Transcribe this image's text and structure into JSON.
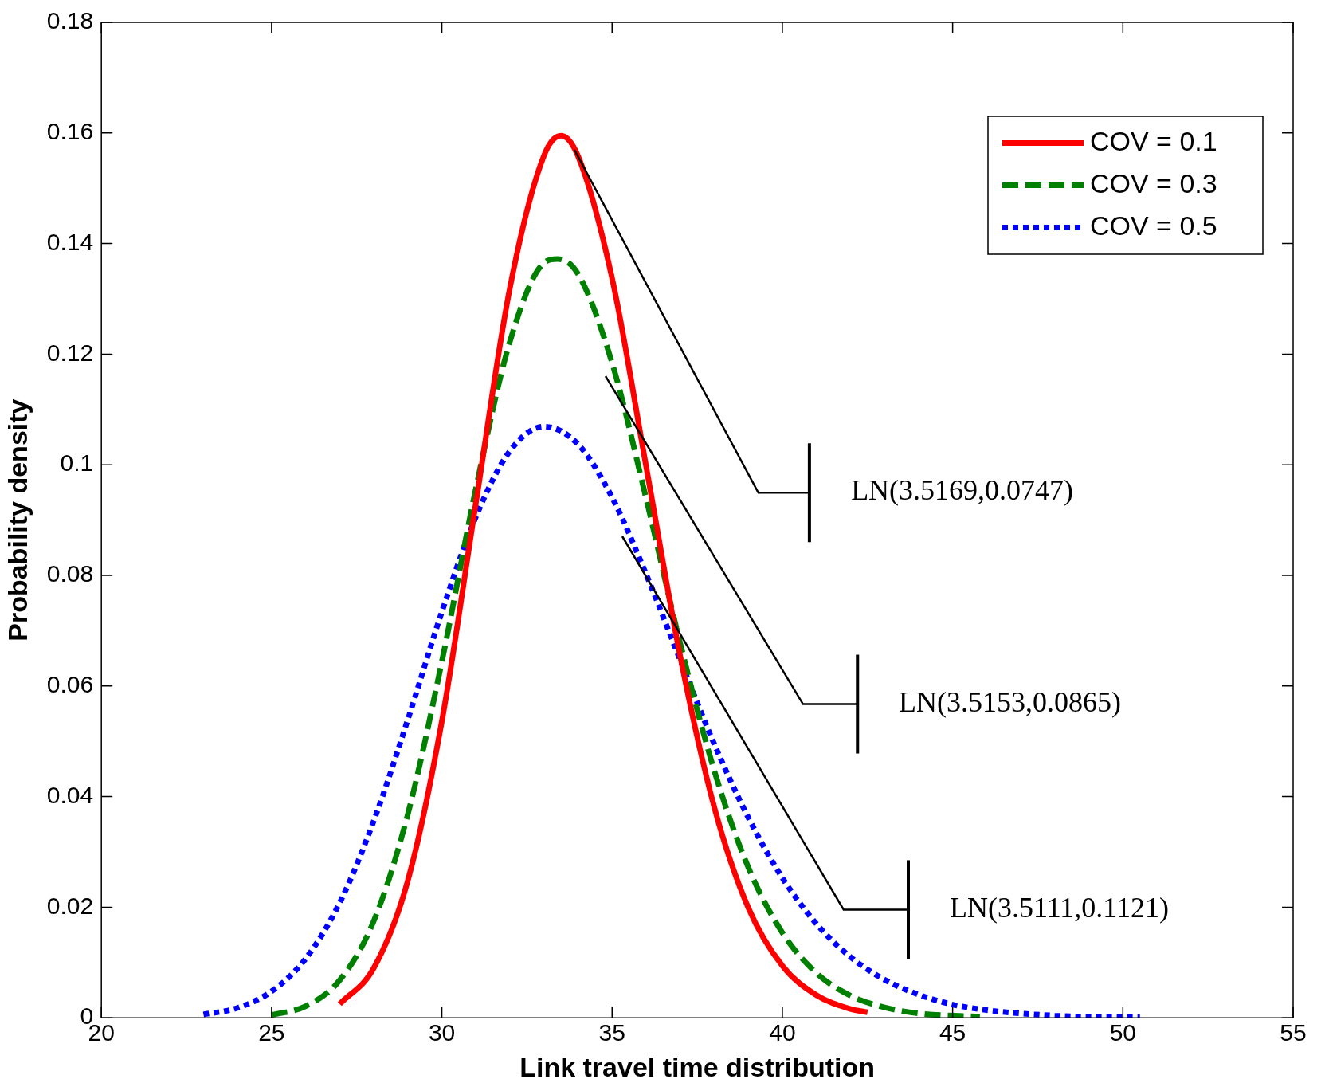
{
  "chart_data": {
    "type": "line",
    "xlabel": "Link travel time distribution",
    "ylabel": "Probability density",
    "xlim": [
      20,
      55
    ],
    "xticks": [
      20,
      25,
      30,
      35,
      40,
      45,
      50,
      55
    ],
    "ylim": [
      0,
      0.18
    ],
    "yticks": [
      0,
      0.02,
      0.04,
      0.06,
      0.08,
      0.1,
      0.12,
      0.14,
      0.16,
      0.18
    ],
    "grid": false,
    "legend": "top right",
    "marker": "none",
    "series": [
      {
        "name": "COV = 0.1",
        "color": "#ff0000",
        "line_style": "solid",
        "x": [
          27,
          28,
          29,
          30,
          31,
          32,
          33,
          33.5,
          34,
          35,
          36,
          37,
          38,
          39,
          40,
          41,
          42,
          42.5
        ],
        "values": [
          0.0025,
          0.009,
          0.0248,
          0.0536,
          0.0931,
          0.132,
          0.1559,
          0.1595,
          0.1558,
          0.1337,
          0.0997,
          0.0654,
          0.0381,
          0.0199,
          0.0094,
          0.0041,
          0.0016,
          0.001
        ]
      },
      {
        "name": "COV = 0.3",
        "color": "#008000",
        "line_style": "dashed",
        "x": [
          25,
          26,
          27,
          28,
          29,
          30,
          31,
          32,
          33,
          33.4,
          34,
          35,
          36,
          37,
          38,
          39,
          40,
          41,
          42,
          43,
          44,
          45.8
        ],
        "values": [
          0.0005,
          0.0021,
          0.0068,
          0.0175,
          0.0368,
          0.0644,
          0.0957,
          0.1223,
          0.1365,
          0.1372,
          0.1345,
          0.1184,
          0.0939,
          0.0677,
          0.0447,
          0.0272,
          0.0154,
          0.0081,
          0.004,
          0.0019,
          0.0008,
          0.0002
        ]
      },
      {
        "name": "COV = 0.5",
        "color": "#0000ff",
        "line_style": "dotted",
        "x": [
          23,
          24,
          25,
          26,
          27,
          28,
          29,
          30,
          31,
          32,
          33,
          34,
          35,
          36,
          37,
          38,
          39,
          40,
          41,
          42,
          43,
          44,
          45,
          46,
          48,
          50.5
        ],
        "values": [
          0.0006,
          0.0018,
          0.0048,
          0.0107,
          0.0208,
          0.0356,
          0.0539,
          0.0734,
          0.0906,
          0.1025,
          0.1069,
          0.1037,
          0.0941,
          0.0802,
          0.0647,
          0.0495,
          0.0362,
          0.0253,
          0.017,
          0.011,
          0.0069,
          0.0042,
          0.0024,
          0.0014,
          0.0004,
          0.0001
        ]
      }
    ],
    "annotations": [
      "LN(3.5169,0.0747)",
      "LN(3.5153,0.0865)",
      "LN(3.5111,0.1121)"
    ]
  }
}
